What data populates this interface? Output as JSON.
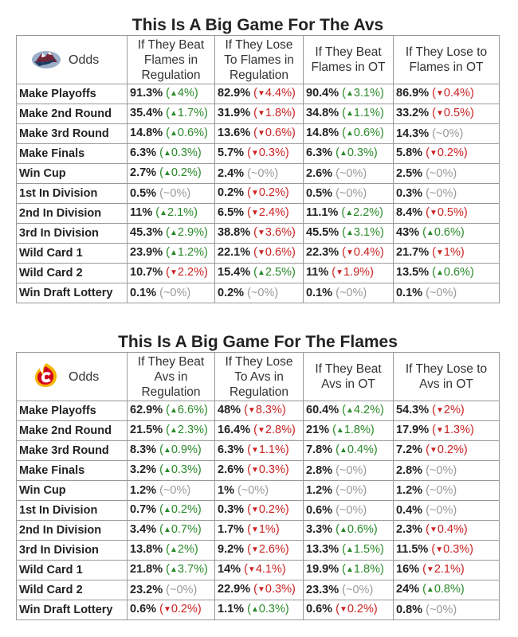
{
  "avs": {
    "title": "This Is A Big Game For The Avs",
    "logo": "colorado-avalanche-logo",
    "headers": [
      "Odds",
      "If They Beat Flames in Regulation",
      "If They Lose To Flames in Regulation",
      "If They Beat Flames in OT",
      "If They Lose to Flames in OT"
    ],
    "rows": [
      {
        "label": "Make Playoffs",
        "cells": [
          {
            "v": "91.3%",
            "d": "up",
            "c": "4%"
          },
          {
            "v": "82.9%",
            "d": "down",
            "c": "4.4%"
          },
          {
            "v": "90.4%",
            "d": "up",
            "c": "3.1%"
          },
          {
            "v": "86.9%",
            "d": "down",
            "c": "0.4%"
          }
        ]
      },
      {
        "label": "Make 2nd Round",
        "cells": [
          {
            "v": "35.4%",
            "d": "up",
            "c": "1.7%"
          },
          {
            "v": "31.9%",
            "d": "down",
            "c": "1.8%"
          },
          {
            "v": "34.8%",
            "d": "up",
            "c": "1.1%"
          },
          {
            "v": "33.2%",
            "d": "down",
            "c": "0.5%"
          }
        ]
      },
      {
        "label": "Make 3rd Round",
        "cells": [
          {
            "v": "14.8%",
            "d": "up",
            "c": "0.6%"
          },
          {
            "v": "13.6%",
            "d": "down",
            "c": "0.6%"
          },
          {
            "v": "14.8%",
            "d": "up",
            "c": "0.6%"
          },
          {
            "v": "14.3%",
            "d": "flat",
            "c": "~0%"
          }
        ]
      },
      {
        "label": "Make Finals",
        "cells": [
          {
            "v": "6.3%",
            "d": "up",
            "c": "0.3%"
          },
          {
            "v": "5.7%",
            "d": "down",
            "c": "0.3%"
          },
          {
            "v": "6.3%",
            "d": "up",
            "c": "0.3%"
          },
          {
            "v": "5.8%",
            "d": "down",
            "c": "0.2%"
          }
        ]
      },
      {
        "label": "Win Cup",
        "cells": [
          {
            "v": "2.7%",
            "d": "up",
            "c": "0.2%"
          },
          {
            "v": "2.4%",
            "d": "flat",
            "c": "~0%"
          },
          {
            "v": "2.6%",
            "d": "flat",
            "c": "~0%"
          },
          {
            "v": "2.5%",
            "d": "flat",
            "c": "~0%"
          }
        ]
      },
      {
        "label": "1st In Division",
        "cells": [
          {
            "v": "0.5%",
            "d": "flat",
            "c": "~0%"
          },
          {
            "v": "0.2%",
            "d": "down",
            "c": "0.2%"
          },
          {
            "v": "0.5%",
            "d": "flat",
            "c": "~0%"
          },
          {
            "v": "0.3%",
            "d": "flat",
            "c": "~0%"
          }
        ]
      },
      {
        "label": "2nd In Division",
        "cells": [
          {
            "v": "11%",
            "d": "up",
            "c": "2.1%"
          },
          {
            "v": "6.5%",
            "d": "down",
            "c": "2.4%"
          },
          {
            "v": "11.1%",
            "d": "up",
            "c": "2.2%"
          },
          {
            "v": "8.4%",
            "d": "down",
            "c": "0.5%"
          }
        ]
      },
      {
        "label": "3rd In Division",
        "cells": [
          {
            "v": "45.3%",
            "d": "up",
            "c": "2.9%"
          },
          {
            "v": "38.8%",
            "d": "down",
            "c": "3.6%"
          },
          {
            "v": "45.5%",
            "d": "up",
            "c": "3.1%"
          },
          {
            "v": "43%",
            "d": "up",
            "c": "0.6%"
          }
        ]
      },
      {
        "label": "Wild Card 1",
        "cells": [
          {
            "v": "23.9%",
            "d": "up",
            "c": "1.2%"
          },
          {
            "v": "22.1%",
            "d": "down",
            "c": "0.6%"
          },
          {
            "v": "22.3%",
            "d": "down",
            "c": "0.4%"
          },
          {
            "v": "21.7%",
            "d": "down",
            "c": "1%"
          }
        ]
      },
      {
        "label": "Wild Card 2",
        "cells": [
          {
            "v": "10.7%",
            "d": "down",
            "c": "2.2%"
          },
          {
            "v": "15.4%",
            "d": "up",
            "c": "2.5%"
          },
          {
            "v": "11%",
            "d": "down",
            "c": "1.9%"
          },
          {
            "v": "13.5%",
            "d": "up",
            "c": "0.6%"
          }
        ]
      },
      {
        "label": "Win Draft Lottery",
        "cells": [
          {
            "v": "0.1%",
            "d": "flat",
            "c": "~0%"
          },
          {
            "v": "0.2%",
            "d": "flat",
            "c": "~0%"
          },
          {
            "v": "0.1%",
            "d": "flat",
            "c": "~0%"
          },
          {
            "v": "0.1%",
            "d": "flat",
            "c": "~0%"
          }
        ]
      }
    ]
  },
  "flames": {
    "title": "This Is A Big Game For The Flames",
    "logo": "calgary-flames-logo",
    "headers": [
      "Odds",
      "If They Beat Avs in Regulation",
      "If They Lose To Avs in Regulation",
      "If They Beat Avs in OT",
      "If They Lose to Avs in OT"
    ],
    "rows": [
      {
        "label": "Make Playoffs",
        "cells": [
          {
            "v": "62.9%",
            "d": "up",
            "c": "6.6%"
          },
          {
            "v": "48%",
            "d": "down",
            "c": "8.3%"
          },
          {
            "v": "60.4%",
            "d": "up",
            "c": "4.2%"
          },
          {
            "v": "54.3%",
            "d": "down",
            "c": "2%"
          }
        ]
      },
      {
        "label": "Make 2nd Round",
        "cells": [
          {
            "v": "21.5%",
            "d": "up",
            "c": "2.3%"
          },
          {
            "v": "16.4%",
            "d": "down",
            "c": "2.8%"
          },
          {
            "v": "21%",
            "d": "up",
            "c": "1.8%"
          },
          {
            "v": "17.9%",
            "d": "down",
            "c": "1.3%"
          }
        ]
      },
      {
        "label": "Make 3rd Round",
        "cells": [
          {
            "v": "8.3%",
            "d": "up",
            "c": "0.9%"
          },
          {
            "v": "6.3%",
            "d": "down",
            "c": "1.1%"
          },
          {
            "v": "7.8%",
            "d": "up",
            "c": "0.4%"
          },
          {
            "v": "7.2%",
            "d": "down",
            "c": "0.2%"
          }
        ]
      },
      {
        "label": "Make Finals",
        "cells": [
          {
            "v": "3.2%",
            "d": "up",
            "c": "0.3%"
          },
          {
            "v": "2.6%",
            "d": "down",
            "c": "0.3%"
          },
          {
            "v": "2.8%",
            "d": "flat",
            "c": "~0%"
          },
          {
            "v": "2.8%",
            "d": "flat",
            "c": "~0%"
          }
        ]
      },
      {
        "label": "Win Cup",
        "cells": [
          {
            "v": "1.2%",
            "d": "flat",
            "c": "~0%"
          },
          {
            "v": "1%",
            "d": "flat",
            "c": "~0%"
          },
          {
            "v": "1.2%",
            "d": "flat",
            "c": "~0%"
          },
          {
            "v": "1.2%",
            "d": "flat",
            "c": "~0%"
          }
        ]
      },
      {
        "label": "1st In Division",
        "cells": [
          {
            "v": "0.7%",
            "d": "up",
            "c": "0.2%"
          },
          {
            "v": "0.3%",
            "d": "down",
            "c": "0.2%"
          },
          {
            "v": "0.6%",
            "d": "flat",
            "c": "~0%"
          },
          {
            "v": "0.4%",
            "d": "flat",
            "c": "~0%"
          }
        ]
      },
      {
        "label": "2nd In Division",
        "cells": [
          {
            "v": "3.4%",
            "d": "up",
            "c": "0.7%"
          },
          {
            "v": "1.7%",
            "d": "down",
            "c": "1%"
          },
          {
            "v": "3.3%",
            "d": "up",
            "c": "0.6%"
          },
          {
            "v": "2.3%",
            "d": "down",
            "c": "0.4%"
          }
        ]
      },
      {
        "label": "3rd In Division",
        "cells": [
          {
            "v": "13.8%",
            "d": "up",
            "c": "2%"
          },
          {
            "v": "9.2%",
            "d": "down",
            "c": "2.6%"
          },
          {
            "v": "13.3%",
            "d": "up",
            "c": "1.5%"
          },
          {
            "v": "11.5%",
            "d": "down",
            "c": "0.3%"
          }
        ]
      },
      {
        "label": "Wild Card 1",
        "cells": [
          {
            "v": "21.8%",
            "d": "up",
            "c": "3.7%"
          },
          {
            "v": "14%",
            "d": "down",
            "c": "4.1%"
          },
          {
            "v": "19.9%",
            "d": "up",
            "c": "1.8%"
          },
          {
            "v": "16%",
            "d": "down",
            "c": "2.1%"
          }
        ]
      },
      {
        "label": "Wild Card 2",
        "cells": [
          {
            "v": "23.2%",
            "d": "flat",
            "c": "~0%"
          },
          {
            "v": "22.9%",
            "d": "down",
            "c": "0.3%"
          },
          {
            "v": "23.3%",
            "d": "flat",
            "c": "~0%"
          },
          {
            "v": "24%",
            "d": "up",
            "c": "0.8%"
          }
        ]
      },
      {
        "label": "Win Draft Lottery",
        "cells": [
          {
            "v": "0.6%",
            "d": "down",
            "c": "0.2%"
          },
          {
            "v": "1.1%",
            "d": "up",
            "c": "0.3%"
          },
          {
            "v": "0.6%",
            "d": "down",
            "c": "0.2%"
          },
          {
            "v": "0.8%",
            "d": "flat",
            "c": "~0%"
          }
        ]
      }
    ]
  },
  "colors": {
    "up": "#2a8a2a",
    "down": "#cc2222",
    "flat": "#999999",
    "border": "#999999"
  }
}
